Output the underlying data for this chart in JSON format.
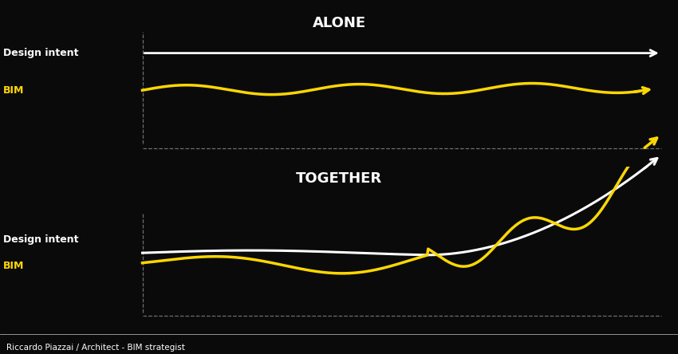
{
  "bg_color": "#0a0a0a",
  "title_alone": "ALONE",
  "title_together": "TOGETHER",
  "label_design_intent": "Design intent",
  "label_bim": "BIM",
  "label_bim_color": "#FFD700",
  "label_design_color": "#FFFFFF",
  "footer": "Riccardo Piazzai / Architect - BIM strategist",
  "white_line_color": "#FFFFFF",
  "gold_line_color": "#FFD700",
  "dashed_color": "#888888"
}
